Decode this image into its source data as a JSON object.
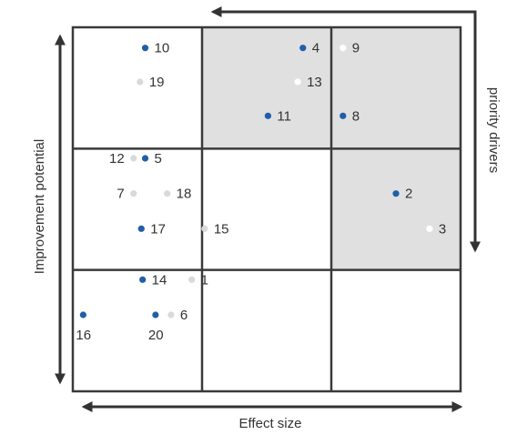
{
  "chart_data": {
    "type": "scatter",
    "xlabel": "Effect size",
    "ylabel": "Improvement potential",
    "arrow_label": "priority drivers",
    "grid": {
      "columns": 3,
      "rows": 3,
      "shaded_cells": [
        [
          1,
          0
        ],
        [
          2,
          0
        ],
        [
          2,
          1
        ]
      ]
    },
    "xlim": [
      0,
      3
    ],
    "ylim": [
      0,
      3
    ],
    "colors": {
      "dark": "#1f5fa8",
      "light": "#d9d9d9",
      "white": "#ffffff",
      "shade": "#e0e0e0",
      "grid": "#3a3a3a",
      "text": "#333333"
    },
    "points": [
      {
        "label": "1",
        "x": 0.92,
        "y": 0.92,
        "color": "light"
      },
      {
        "label": "2",
        "x": 2.5,
        "y": 1.63,
        "color": "dark"
      },
      {
        "label": "3",
        "x": 2.76,
        "y": 1.34,
        "color": "white"
      },
      {
        "label": "4",
        "x": 1.78,
        "y": 2.83,
        "color": "dark"
      },
      {
        "label": "5",
        "x": 0.56,
        "y": 1.92,
        "color": "dark"
      },
      {
        "label": "6",
        "x": 0.76,
        "y": 0.63,
        "color": "light"
      },
      {
        "label": "7",
        "x": 0.47,
        "y": 1.63,
        "color": "light"
      },
      {
        "label": "8",
        "x": 2.09,
        "y": 2.27,
        "color": "dark"
      },
      {
        "label": "9",
        "x": 2.09,
        "y": 2.83,
        "color": "white"
      },
      {
        "label": "10",
        "x": 0.56,
        "y": 2.83,
        "color": "dark"
      },
      {
        "label": "11",
        "x": 1.51,
        "y": 2.27,
        "color": "dark"
      },
      {
        "label": "12",
        "x": 0.47,
        "y": 1.92,
        "color": "light"
      },
      {
        "label": "13",
        "x": 1.74,
        "y": 2.55,
        "color": "white"
      },
      {
        "label": "14",
        "x": 0.54,
        "y": 0.92,
        "color": "dark"
      },
      {
        "label": "15",
        "x": 1.02,
        "y": 1.34,
        "color": "light"
      },
      {
        "label": "16",
        "x": 0.08,
        "y": 0.63,
        "color": "dark"
      },
      {
        "label": "17",
        "x": 0.53,
        "y": 1.34,
        "color": "dark"
      },
      {
        "label": "18",
        "x": 0.73,
        "y": 1.63,
        "color": "light"
      },
      {
        "label": "19",
        "x": 0.52,
        "y": 2.55,
        "color": "light"
      },
      {
        "label": "20",
        "x": 0.64,
        "y": 0.63,
        "color": "dark"
      }
    ]
  }
}
